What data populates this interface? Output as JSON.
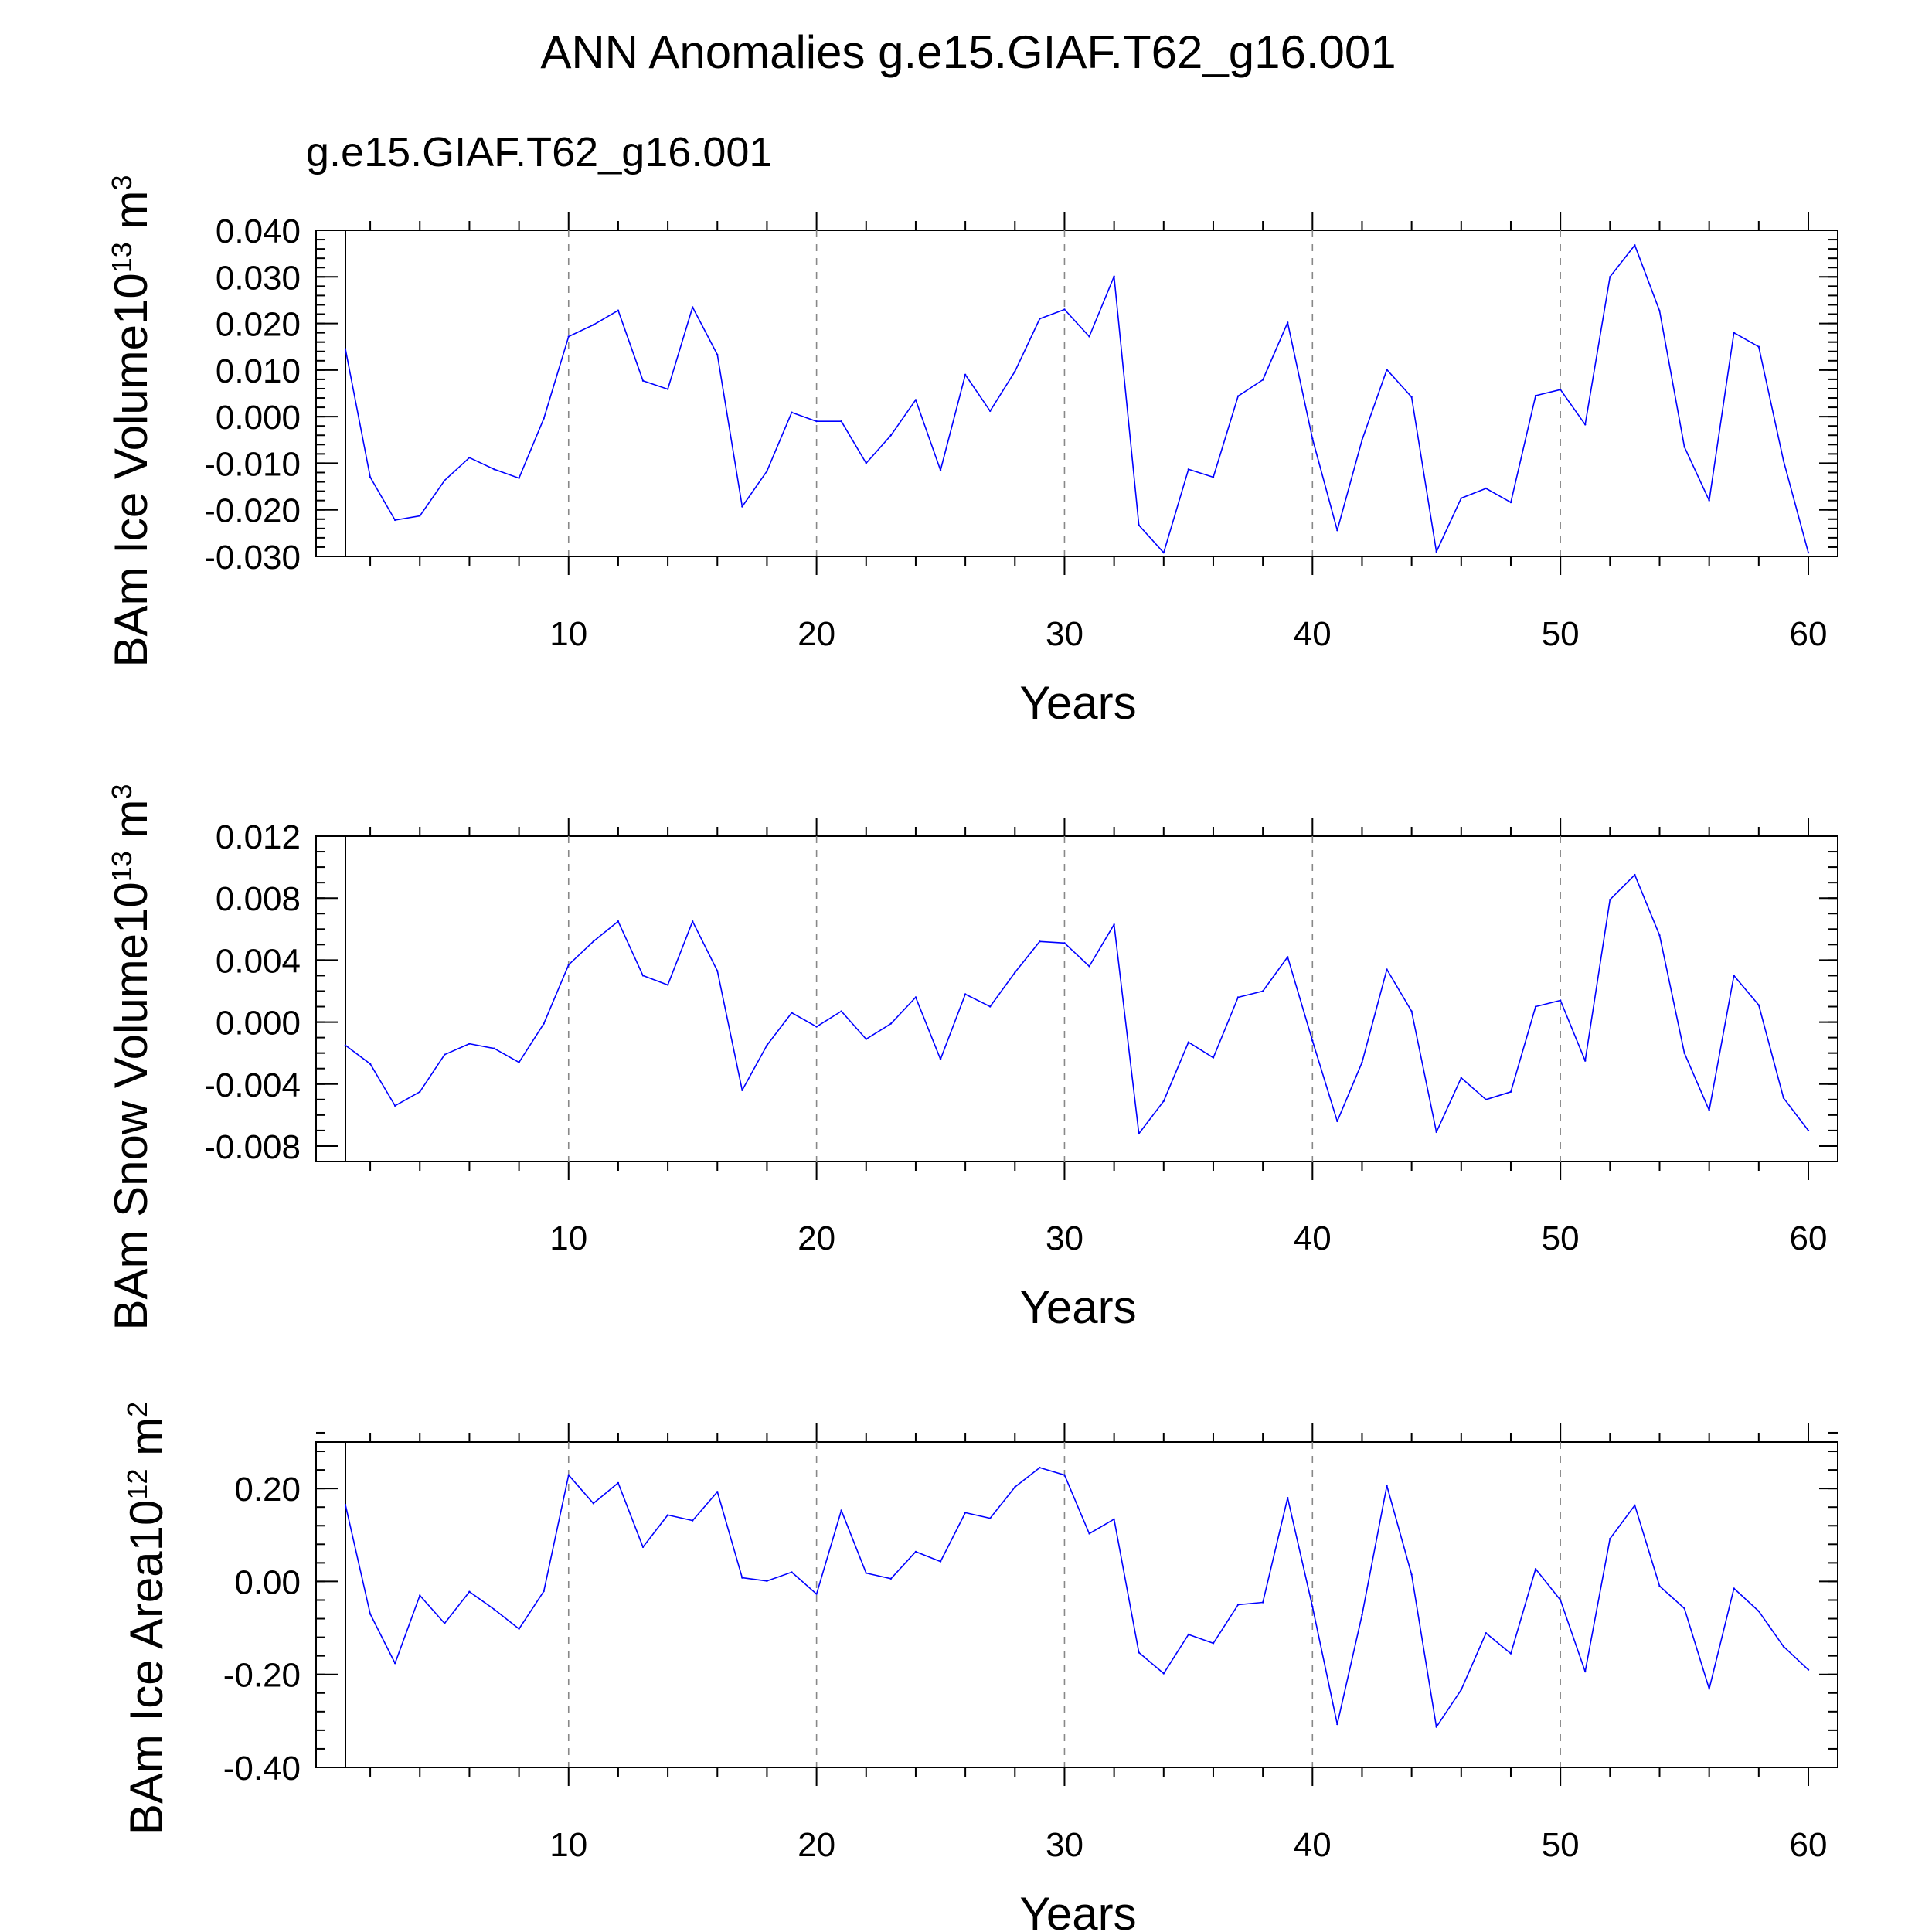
{
  "title": "ANN Anomalies g.e15.GIAF.T62_g16.001",
  "subtitle": "g.e15.GIAF.T62_g16.001",
  "colors": {
    "series": "#0000ff",
    "subtitle": "#0000ff",
    "axes": "#000000",
    "grid": "#888888"
  },
  "chart_data": [
    {
      "type": "line",
      "panel": "ice-volume",
      "ylabel": "BAm Ice Volume",
      "yunit_base": "10",
      "yunit_exp": "13",
      "yunit_rest": " m",
      "yunit_rest_exp": "3",
      "xlabel": "Years",
      "xlim": [
        1,
        60
      ],
      "ylim": [
        -0.03,
        0.04
      ],
      "xticks": [
        10,
        20,
        30,
        40,
        50,
        60
      ],
      "xtick_labels": [
        "10",
        "20",
        "30",
        "40",
        "50",
        "60"
      ],
      "yticks": [
        -0.03,
        -0.02,
        -0.01,
        0.0,
        0.01,
        0.02,
        0.03,
        0.04
      ],
      "ytick_labels": [
        "-0.030",
        "-0.020",
        "-0.010",
        "0.000",
        "0.010",
        "0.020",
        "0.030",
        "0.040"
      ],
      "x_minor_step": 2,
      "y_minor_step": 0.002,
      "vgrid": [
        10,
        20,
        30,
        40,
        50
      ],
      "series": [
        {
          "name": "g.e15.GIAF.T62_g16.001",
          "x": [
            1,
            2,
            3,
            4,
            5,
            6,
            7,
            8,
            9,
            10,
            11,
            12,
            13,
            14,
            15,
            16,
            17,
            18,
            19,
            20,
            21,
            22,
            23,
            24,
            25,
            26,
            27,
            28,
            29,
            30,
            31,
            32,
            33,
            34,
            35,
            36,
            37,
            38,
            39,
            40,
            41,
            42,
            43,
            44,
            45,
            46,
            47,
            48,
            49,
            50,
            51,
            52,
            53,
            54,
            55,
            56,
            57,
            58,
            59,
            60
          ],
          "values": [
            0.0145,
            -0.013,
            -0.0222,
            -0.0213,
            -0.0137,
            -0.0088,
            -0.0113,
            -0.0132,
            -0.0004,
            0.0172,
            0.0197,
            0.0228,
            0.0077,
            0.0059,
            0.0235,
            0.0133,
            -0.0193,
            -0.0117,
            0.0009,
            -0.001,
            -0.001,
            -0.01,
            -0.004,
            0.0036,
            -0.0115,
            0.009,
            0.0012,
            0.0097,
            0.021,
            0.023,
            0.0172,
            0.0301,
            -0.0233,
            -0.0292,
            -0.0113,
            -0.013,
            0.0044,
            0.0079,
            0.0202,
            -0.0047,
            -0.0244,
            -0.005,
            0.0101,
            0.0042,
            -0.029,
            -0.0175,
            -0.0154,
            -0.0184,
            0.0045,
            0.0058,
            -0.0017,
            0.03,
            0.0368,
            0.0227,
            -0.0065,
            -0.018,
            0.018,
            0.015,
            -0.0095,
            -0.0292
          ]
        }
      ]
    },
    {
      "type": "line",
      "panel": "snow-volume",
      "ylabel": "BAm Snow Volume",
      "yunit_base": "10",
      "yunit_exp": "13",
      "yunit_rest": " m",
      "yunit_rest_exp": "3",
      "xlabel": "Years",
      "xlim": [
        1,
        60
      ],
      "ylim": [
        -0.009,
        0.012
      ],
      "xticks": [
        10,
        20,
        30,
        40,
        50,
        60
      ],
      "xtick_labels": [
        "10",
        "20",
        "30",
        "40",
        "50",
        "60"
      ],
      "yticks": [
        -0.008,
        -0.004,
        0.0,
        0.004,
        0.008,
        0.012
      ],
      "ytick_labels": [
        "-0.008",
        "-0.004",
        "0.000",
        "0.004",
        "0.008",
        "0.012"
      ],
      "x_minor_step": 2,
      "y_minor_step": 0.001,
      "vgrid": [
        10,
        20,
        30,
        40,
        50
      ],
      "series": [
        {
          "name": "g.e15.GIAF.T62_g16.001",
          "x": [
            1,
            2,
            3,
            4,
            5,
            6,
            7,
            8,
            9,
            10,
            11,
            12,
            13,
            14,
            15,
            16,
            17,
            18,
            19,
            20,
            21,
            22,
            23,
            24,
            25,
            26,
            27,
            28,
            29,
            30,
            31,
            32,
            33,
            34,
            35,
            36,
            37,
            38,
            39,
            40,
            41,
            42,
            43,
            44,
            45,
            46,
            47,
            48,
            49,
            50,
            51,
            52,
            53,
            54,
            55,
            56,
            57,
            58,
            59,
            60
          ],
          "values": [
            -0.0015,
            -0.0027,
            -0.0054,
            -0.0045,
            -0.0021,
            -0.0014,
            -0.0017,
            -0.0026,
            -0.0001,
            0.0037,
            0.0052,
            0.0065,
            0.003,
            0.0024,
            0.0065,
            0.0033,
            -0.0044,
            -0.0015,
            0.0006,
            -0.0003,
            0.0007,
            -0.0011,
            -0.0001,
            0.0016,
            -0.0024,
            0.0018,
            0.001,
            0.0032,
            0.0052,
            0.0051,
            0.0036,
            0.0063,
            -0.0072,
            -0.0051,
            -0.0013,
            -0.0023,
            0.0016,
            0.002,
            0.0042,
            -0.0012,
            -0.0064,
            -0.0026,
            0.0034,
            0.0007,
            -0.0071,
            -0.0036,
            -0.005,
            -0.0045,
            0.001,
            0.0014,
            -0.0025,
            0.0079,
            0.0095,
            0.0056,
            -0.002,
            -0.0057,
            0.003,
            0.0011,
            -0.0049,
            -0.007
          ]
        }
      ]
    },
    {
      "type": "line",
      "panel": "ice-area",
      "ylabel": "BAm Ice Area",
      "yunit_base": "10",
      "yunit_exp": "12",
      "yunit_rest": " m",
      "yunit_rest_exp": "2",
      "xlabel": "Years",
      "xlim": [
        1,
        60
      ],
      "ylim": [
        -0.4,
        0.3
      ],
      "xticks": [
        10,
        20,
        30,
        40,
        50,
        60
      ],
      "xtick_labels": [
        "10",
        "20",
        "30",
        "40",
        "50",
        "60"
      ],
      "yticks": [
        -0.4,
        -0.2,
        0.0,
        0.2
      ],
      "ytick_labels": [
        "-0.40",
        "-0.20",
        "0.00",
        "0.20"
      ],
      "x_minor_step": 2,
      "y_minor_step": 0.04,
      "vgrid": [
        10,
        20,
        30,
        40,
        50
      ],
      "series": [
        {
          "name": "g.e15.GIAF.T62_g16.001",
          "x": [
            1,
            2,
            3,
            4,
            5,
            6,
            7,
            8,
            9,
            10,
            11,
            12,
            13,
            14,
            15,
            16,
            17,
            18,
            19,
            20,
            21,
            22,
            23,
            24,
            25,
            26,
            27,
            28,
            29,
            30,
            31,
            32,
            33,
            34,
            35,
            36,
            37,
            38,
            39,
            40,
            41,
            42,
            43,
            44,
            45,
            46,
            47,
            48,
            49,
            50,
            51,
            52,
            53,
            54,
            55,
            56,
            57,
            58,
            59,
            60
          ],
          "values": [
            0.165,
            -0.07,
            -0.176,
            -0.03,
            -0.09,
            -0.022,
            -0.06,
            -0.102,
            -0.021,
            0.229,
            0.168,
            0.212,
            0.074,
            0.143,
            0.131,
            0.193,
            0.008,
            0.001,
            0.02,
            -0.027,
            0.153,
            0.018,
            0.006,
            0.064,
            0.043,
            0.148,
            0.136,
            0.203,
            0.245,
            0.229,
            0.103,
            0.134,
            -0.153,
            -0.198,
            -0.114,
            -0.133,
            -0.05,
            -0.045,
            0.18,
            -0.054,
            -0.307,
            -0.072,
            0.206,
            0.015,
            -0.313,
            -0.233,
            -0.111,
            -0.155,
            0.027,
            -0.04,
            -0.194,
            0.092,
            0.164,
            -0.01,
            -0.058,
            -0.231,
            -0.015,
            -0.064,
            -0.14,
            -0.19
          ]
        }
      ]
    }
  ]
}
